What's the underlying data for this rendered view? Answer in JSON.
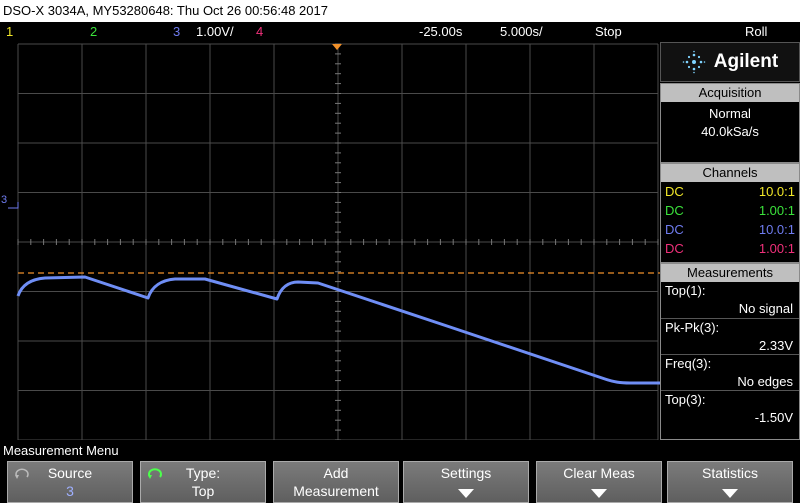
{
  "titlebar": {
    "text": "DSO-X 3034A, MY53280648: Thu Oct 26 00:56:48 2017"
  },
  "status": {
    "ch1": "1",
    "ch2": "2",
    "ch3": "3",
    "ch3_scale": "1.00V/",
    "ch4": "4",
    "delay": "-25.00s",
    "timebase": "5.000s/",
    "run_state": "Stop",
    "mode": "Roll"
  },
  "colors": {
    "ch1": "#f2e829",
    "ch2": "#3be23b",
    "ch3": "#6f7cf0",
    "ch4": "#f0307a",
    "trace": "#6f8ef5",
    "trigger_level": "#f0902a",
    "grid": "#555555"
  },
  "side": {
    "brand": "Agilent",
    "acquisition": {
      "header": "Acquisition",
      "mode": "Normal",
      "rate": "40.0kSa/s"
    },
    "channels": {
      "header": "Channels",
      "rows": [
        {
          "coupling": "DC",
          "probe": "10.0:1"
        },
        {
          "coupling": "DC",
          "probe": "1.00:1"
        },
        {
          "coupling": "DC",
          "probe": "10.0:1"
        },
        {
          "coupling": "DC",
          "probe": "1.00:1"
        }
      ]
    },
    "measurements": {
      "header": "Measurements",
      "items": [
        {
          "name": "Top(1):",
          "value": "No signal"
        },
        {
          "name": "Pk-Pk(3):",
          "value": "2.33V"
        },
        {
          "name": "Freq(3):",
          "value": "No edges"
        },
        {
          "name": "Top(3):",
          "value": "-1.50V"
        }
      ]
    }
  },
  "scope": {
    "ch3_marker": "3"
  },
  "menu": {
    "title": "Measurement Menu",
    "keys": [
      {
        "line1": "Source",
        "line2": "3"
      },
      {
        "line1": "Type:",
        "line2": "Top"
      },
      {
        "line1": "Add",
        "line2": "Measurement"
      },
      {
        "line1": "Settings",
        "line2": ""
      },
      {
        "line1": "Clear Meas",
        "line2": ""
      },
      {
        "line1": "Statistics",
        "line2": ""
      }
    ]
  }
}
